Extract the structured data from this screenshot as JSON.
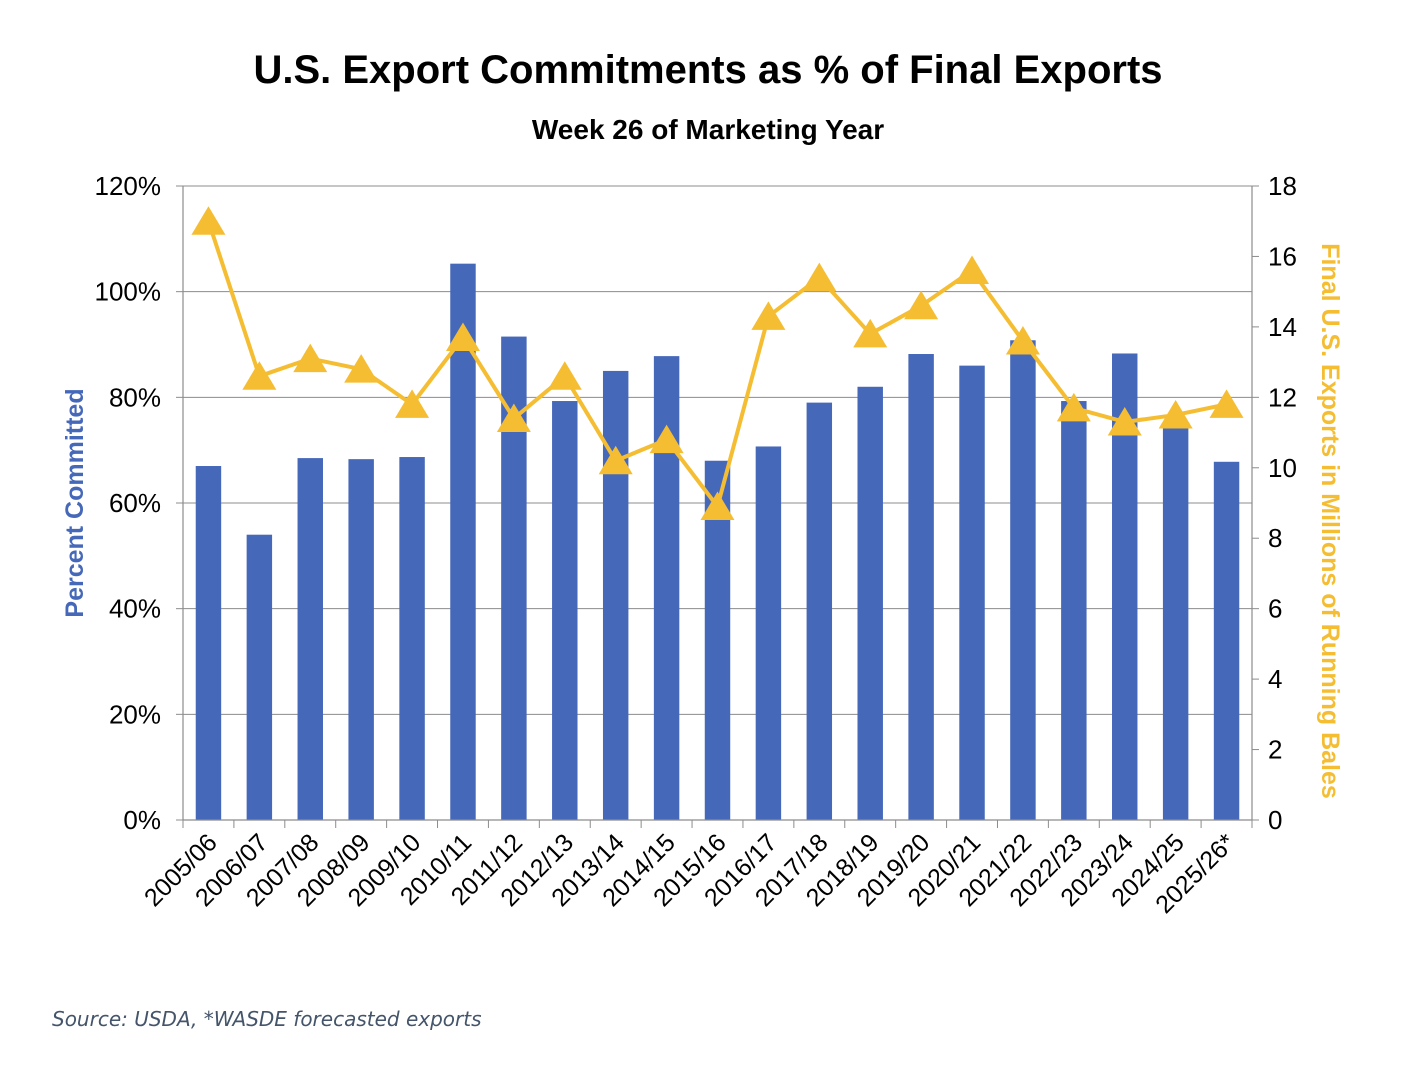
{
  "colors": {
    "bar": "#4668b9",
    "line": "#f5bd32",
    "grid": "#8c8c8c",
    "axis": "#8c8c8c",
    "text": "#000000",
    "source": "#44546a"
  },
  "source_note": "Source: USDA, *WASDE forecasted exports",
  "chart_data": {
    "type": "bar",
    "title": "U.S. Export Commitments as % of Final Exports",
    "subtitle": "Week 26 of Marketing Year",
    "categories": [
      "2005/06",
      "2006/07",
      "2007/08",
      "2008/09",
      "2009/10",
      "2010/11",
      "2011/12",
      "2012/13",
      "2013/14",
      "2014/15",
      "2015/16",
      "2016/17",
      "2017/18",
      "2018/19",
      "2019/20",
      "2020/21",
      "2021/22",
      "2022/23",
      "2023/24",
      "2024/25",
      "2025/26*"
    ],
    "ylabel": "Percent Committed",
    "y2label": "Final U.S. Exports in Millions of Running Bales",
    "ylim": [
      0,
      120
    ],
    "y2lim": [
      0,
      18
    ],
    "yticks": [
      "0%",
      "20%",
      "40%",
      "60%",
      "80%",
      "100%",
      "120%"
    ],
    "y2ticks": [
      "0",
      "2",
      "4",
      "6",
      "8",
      "10",
      "12",
      "14",
      "16",
      "18"
    ],
    "grid": true,
    "series": [
      {
        "type": "bar",
        "axis": "left",
        "unit": "%",
        "values": [
          67,
          54,
          68.5,
          68.3,
          68.7,
          105.3,
          91.5,
          79.3,
          85,
          87.8,
          68,
          70.7,
          79,
          82,
          88.2,
          86,
          90.8,
          79.3,
          88.3,
          75,
          67.8
        ]
      },
      {
        "type": "line",
        "axis": "right",
        "marker": "triangle",
        "values": [
          17.0,
          12.6,
          13.1,
          12.8,
          11.8,
          13.7,
          11.4,
          12.6,
          10.2,
          10.8,
          8.9,
          14.3,
          15.4,
          13.8,
          14.6,
          15.6,
          13.6,
          11.7,
          11.3,
          11.5,
          11.8
        ]
      }
    ]
  }
}
